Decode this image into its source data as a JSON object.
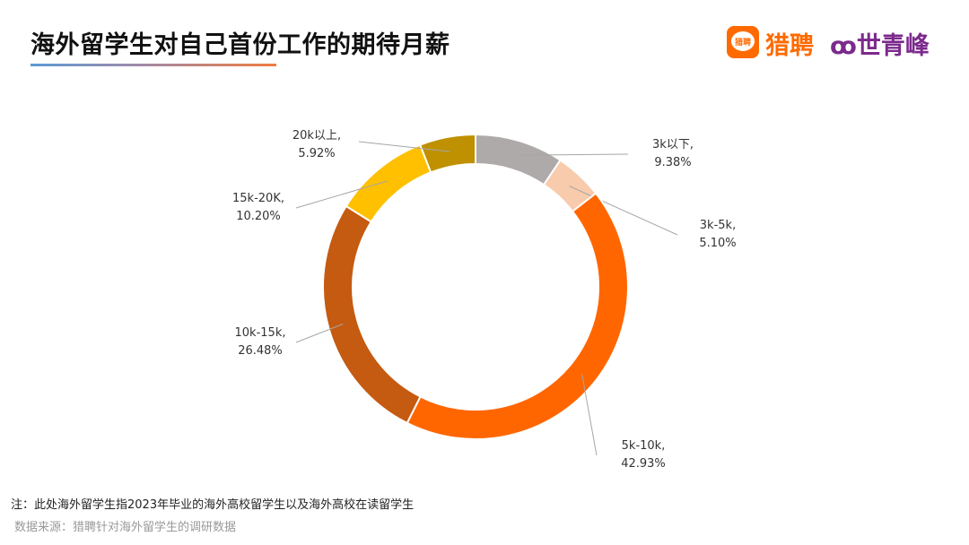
{
  "header": {
    "title": "海外留学生对自己首份工作的期待月薪"
  },
  "logos": {
    "liepin_icon_text": "猎聘",
    "liepin_text": "猎聘",
    "brand_text": "꜃世青峰"
  },
  "chart_data": {
    "type": "pie",
    "donut": true,
    "title": "海外留学生对自己首份工作的期待月薪",
    "categories": [
      "3k以下",
      "3k-5k",
      "5k-10k",
      "10k-15k",
      "15k-20K",
      "20k以上"
    ],
    "values": [
      9.38,
      5.1,
      42.93,
      26.48,
      10.2,
      5.92
    ],
    "labels": [
      "9.38%",
      "5.10%",
      "42.93%",
      "26.48%",
      "10.20%",
      "5.92%"
    ],
    "colors": [
      "#aeaaaa",
      "#f8cbad",
      "#ff6600",
      "#c55a11",
      "#ffc000",
      "#bf9000"
    ],
    "unit": "%",
    "legend": "none"
  },
  "footer": {
    "note": "注：此处海外留学生指2023年毕业的海外高校留学生以及海外高校在读留学生",
    "source": "数据来源：猎聘针对海外留学生的调研数据"
  }
}
